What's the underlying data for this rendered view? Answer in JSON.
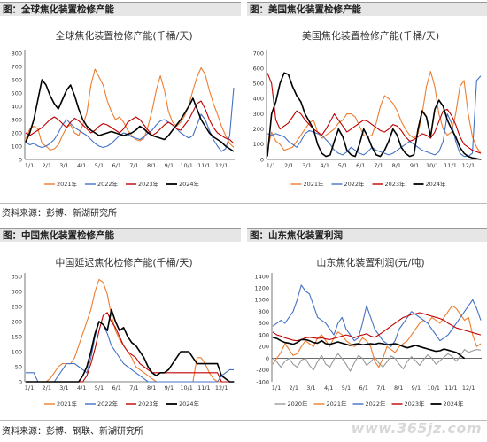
{
  "captions": {
    "tl": "图：全球焦化装置检修产能",
    "tr": "图：美国焦化装置检修产能",
    "bl": "图：中国焦化装置检修产能",
    "br": "图：山东焦化装置利润"
  },
  "sources": {
    "top": "资料来源：彭博、新湖研究所",
    "bottom": "资料来源：彭博、钢联、新湖研究所"
  },
  "watermark": "www.365jz.com",
  "chart_data": [
    {
      "id": "global",
      "type": "line",
      "title": "全球焦化装置检修产能(千桶/天)",
      "ylim": [
        0,
        800
      ],
      "yticks": [
        0,
        100,
        200,
        300,
        400,
        500,
        600,
        700,
        800
      ],
      "x_labels": [
        "1/1",
        "2/1",
        "3/1",
        "4/1",
        "5/1",
        "6/1",
        "7/1",
        "8/1",
        "9/1",
        "10/1",
        "11/1",
        "12/1"
      ],
      "series": [
        {
          "name": "2021年",
          "color": "#ED7D31",
          "values": [
            150,
            230,
            250,
            230,
            120,
            100,
            70,
            80,
            110,
            180,
            240,
            260,
            200,
            180,
            260,
            350,
            560,
            680,
            620,
            560,
            440,
            360,
            300,
            320,
            280,
            220,
            180,
            150,
            140,
            160,
            250,
            370,
            520,
            630,
            520,
            360,
            280,
            250,
            280,
            330,
            410,
            520,
            620,
            690,
            640,
            520,
            420,
            340,
            250,
            180,
            120,
            90
          ]
        },
        {
          "name": "2022年",
          "color": "#4472C4",
          "values": [
            130,
            110,
            120,
            100,
            90,
            100,
            120,
            150,
            200,
            260,
            300,
            270,
            240,
            220,
            200,
            180,
            150,
            120,
            100,
            90,
            100,
            120,
            150,
            180,
            200,
            190,
            170,
            160,
            150,
            170,
            200,
            220,
            260,
            290,
            300,
            280,
            260,
            230,
            200,
            180,
            160,
            180,
            260,
            340,
            300,
            220,
            150,
            100,
            60,
            80,
            180,
            540
          ]
        },
        {
          "name": "2023年",
          "color": "#C00000",
          "values": [
            200,
            180,
            200,
            220,
            240,
            270,
            300,
            320,
            300,
            270,
            240,
            280,
            310,
            290,
            260,
            230,
            200,
            220,
            250,
            270,
            260,
            240,
            220,
            200,
            230,
            280,
            300,
            320,
            300,
            260,
            220,
            180,
            200,
            230,
            260,
            280,
            260,
            230,
            220,
            260,
            300,
            360,
            420,
            440,
            380,
            300,
            240,
            200,
            180,
            160,
            150,
            120
          ]
        },
        {
          "name": "2024年",
          "color": "#000000",
          "values": [
            130,
            200,
            300,
            450,
            600,
            560,
            480,
            420,
            380,
            450,
            520,
            560,
            480,
            380,
            300,
            250,
            220,
            200,
            180,
            190,
            200,
            210,
            200,
            190,
            180,
            190,
            200,
            220,
            250,
            230,
            200,
            180,
            170,
            160,
            150,
            180,
            220,
            260,
            300,
            350,
            400,
            460,
            380,
            300,
            250,
            200,
            170,
            150,
            130,
            100,
            80,
            60
          ]
        }
      ]
    },
    {
      "id": "us",
      "type": "line",
      "title": "美国焦化装置检修产能(千桶/天)",
      "ylim": [
        0,
        700
      ],
      "yticks": [
        0,
        100,
        200,
        300,
        400,
        500,
        600,
        700
      ],
      "x_labels": [
        "1/1",
        "2/1",
        "3/1",
        "4/1",
        "5/1",
        "6/1",
        "7/1",
        "8/1",
        "9/1",
        "10/1",
        "11/1",
        "12/1"
      ],
      "series": [
        {
          "name": "2021年",
          "color": "#ED7D31",
          "values": [
            60,
            180,
            120,
            100,
            60,
            70,
            80,
            120,
            160,
            200,
            240,
            260,
            180,
            140,
            160,
            180,
            200,
            240,
            260,
            300,
            300,
            280,
            220,
            160,
            150,
            160,
            240,
            350,
            420,
            400,
            370,
            320,
            250,
            200,
            160,
            140,
            170,
            300,
            480,
            580,
            480,
            300,
            200,
            160,
            180,
            300,
            480,
            520,
            300,
            150,
            80,
            40
          ]
        },
        {
          "name": "2022年",
          "color": "#4472C4",
          "values": [
            170,
            160,
            170,
            160,
            150,
            120,
            100,
            80,
            120,
            170,
            190,
            180,
            170,
            160,
            130,
            100,
            60,
            40,
            30,
            50,
            80,
            60,
            40,
            30,
            50,
            80,
            60,
            50,
            40,
            30,
            40,
            60,
            80,
            100,
            120,
            100,
            80,
            60,
            50,
            40,
            30,
            50,
            120,
            300,
            240,
            120,
            40,
            20,
            20,
            40,
            520,
            550
          ]
        },
        {
          "name": "2023年",
          "color": "#C00000",
          "values": [
            570,
            500,
            260,
            200,
            220,
            240,
            280,
            320,
            300,
            260,
            230,
            200,
            180,
            160,
            200,
            250,
            300,
            260,
            220,
            180,
            200,
            220,
            240,
            260,
            250,
            230,
            210,
            190,
            180,
            200,
            230,
            220,
            190,
            150,
            120,
            130,
            150,
            170,
            160,
            140,
            180,
            250,
            320,
            330,
            290,
            230,
            150,
            100,
            80,
            60,
            50,
            40
          ]
        },
        {
          "name": "2024年",
          "color": "#000000",
          "values": [
            20,
            300,
            380,
            500,
            570,
            560,
            480,
            420,
            380,
            300,
            250,
            200,
            100,
            40,
            20,
            30,
            120,
            200,
            150,
            60,
            30,
            20,
            100,
            200,
            150,
            80,
            30,
            20,
            60,
            120,
            200,
            160,
            80,
            40,
            20,
            30,
            200,
            320,
            280,
            150,
            330,
            390,
            350,
            260,
            200,
            150,
            80,
            40,
            20,
            10,
            5,
            0
          ]
        }
      ]
    },
    {
      "id": "china",
      "type": "line",
      "title": "中国延迟焦化检修产能(千桶/天)",
      "ylim": [
        0,
        350
      ],
      "yticks": [
        0,
        50,
        100,
        150,
        200,
        250,
        300,
        350
      ],
      "x_labels": [
        "1/1",
        "2/1",
        "3/1",
        "4/1",
        "5/1",
        "6/1",
        "7/1",
        "8/1",
        "9/1",
        "10/1",
        "11/1",
        "12/1"
      ],
      "series": [
        {
          "name": "2021年",
          "color": "#ED7D31",
          "values": [
            0,
            0,
            0,
            0,
            0,
            0,
            10,
            30,
            50,
            60,
            60,
            60,
            80,
            120,
            160,
            200,
            240,
            300,
            340,
            330,
            290,
            220,
            170,
            140,
            120,
            100,
            80,
            50,
            40,
            30,
            20,
            10,
            0,
            0,
            0,
            0,
            0,
            0,
            0,
            0,
            0,
            0,
            80,
            80,
            60,
            30,
            10,
            0,
            0,
            0,
            0,
            0
          ]
        },
        {
          "name": "2022年",
          "color": "#4472C4",
          "values": [
            30,
            30,
            30,
            0,
            0,
            0,
            0,
            0,
            20,
            40,
            60,
            60,
            60,
            50,
            40,
            30,
            80,
            150,
            200,
            190,
            160,
            120,
            100,
            80,
            60,
            50,
            40,
            30,
            20,
            10,
            0,
            0,
            0,
            0,
            0,
            0,
            0,
            0,
            0,
            0,
            0,
            0,
            0,
            0,
            0,
            0,
            0,
            0,
            20,
            30,
            40,
            40
          ]
        },
        {
          "name": "2023年",
          "color": "#C00000",
          "values": [
            0,
            0,
            0,
            0,
            0,
            0,
            0,
            0,
            0,
            0,
            0,
            0,
            0,
            0,
            0,
            20,
            60,
            110,
            170,
            220,
            230,
            200,
            180,
            150,
            120,
            100,
            90,
            80,
            60,
            50,
            40,
            30,
            30,
            30,
            30,
            30,
            30,
            30,
            30,
            30,
            30,
            30,
            30,
            30,
            30,
            30,
            30,
            30,
            0,
            0,
            0,
            0
          ]
        },
        {
          "name": "2024年",
          "color": "#000000",
          "values": [
            0,
            0,
            0,
            0,
            0,
            0,
            0,
            0,
            0,
            0,
            0,
            0,
            0,
            0,
            20,
            50,
            100,
            160,
            200,
            190,
            170,
            240,
            200,
            170,
            180,
            150,
            130,
            120,
            100,
            80,
            50,
            30,
            20,
            30,
            30,
            40,
            60,
            80,
            100,
            100,
            100,
            80,
            60,
            60,
            60,
            60,
            60,
            60,
            20,
            10,
            0,
            0
          ]
        }
      ]
    },
    {
      "id": "shandong",
      "type": "line",
      "title": "山东焦化装置利润(元/吨)",
      "ylim": [
        -400,
        1400
      ],
      "yticks": [
        -400,
        -200,
        0,
        200,
        400,
        600,
        800,
        1000,
        1200,
        1400
      ],
      "x_labels": [
        "1/1",
        "2/1",
        "3/1",
        "4/1",
        "5/1",
        "6/1",
        "7/1",
        "8/1",
        "9/1",
        "10/1",
        "11/1",
        "12/1"
      ],
      "series": [
        {
          "name": "2020年",
          "color": "#999999",
          "values": [
            0,
            -60,
            -150,
            -50,
            0,
            -100,
            -150,
            -30,
            0,
            -120,
            -200,
            -50,
            50,
            -100,
            -150,
            -20,
            80,
            0,
            -100,
            -220,
            -80,
            50,
            0,
            -120,
            -60,
            20,
            -80,
            -150,
            -60,
            40,
            0,
            -100,
            -180,
            -50,
            30,
            -40,
            -120,
            -20,
            60,
            0,
            -100,
            -40,
            20,
            80,
            30,
            -50,
            50,
            150,
            100,
            130,
            150,
            140
          ]
        },
        {
          "name": "2021年",
          "color": "#ED7D31",
          "values": [
            -100,
            0,
            100,
            250,
            150,
            50,
            80,
            200,
            300,
            250,
            200,
            350,
            400,
            300,
            200,
            350,
            450,
            400,
            300,
            250,
            200,
            250,
            350,
            300,
            200,
            -50,
            -150,
            0,
            200,
            150,
            100,
            200,
            250,
            300,
            400,
            500,
            600,
            650,
            600,
            700,
            650,
            600,
            700,
            800,
            900,
            850,
            750,
            650,
            700,
            400,
            200,
            250
          ]
        },
        {
          "name": "2022年",
          "color": "#4472C4",
          "values": [
            550,
            600,
            650,
            600,
            700,
            800,
            1000,
            1250,
            1150,
            1100,
            900,
            700,
            650,
            600,
            500,
            400,
            600,
            700,
            500,
            400,
            300,
            350,
            600,
            900,
            700,
            500,
            400,
            300,
            250,
            200,
            300,
            500,
            600,
            700,
            800,
            750,
            700,
            650,
            600,
            500,
            400,
            300,
            350,
            400,
            500,
            600,
            700,
            800,
            900,
            1000,
            850,
            650
          ]
        },
        {
          "name": "2023年",
          "color": "#C00000",
          "values": [
            450,
            400,
            380,
            350,
            330,
            310,
            300,
            320,
            350,
            360,
            350,
            340,
            350,
            330,
            320,
            340,
            360,
            380,
            400,
            380,
            350,
            380,
            400,
            420,
            380,
            360,
            400,
            450,
            500,
            550,
            600,
            650,
            700,
            720,
            750,
            760,
            780,
            760,
            740,
            720,
            700,
            680,
            650,
            600,
            560,
            520,
            500,
            480,
            460,
            440,
            420,
            400
          ]
        },
        {
          "name": "2024年",
          "color": "#000000",
          "values": [
            360,
            340,
            300,
            270,
            260,
            240,
            270,
            320,
            320,
            300,
            270,
            260,
            300,
            250,
            240,
            260,
            280,
            260,
            240,
            220,
            240,
            250,
            230,
            240,
            250,
            240,
            260,
            250,
            230,
            240,
            250,
            230,
            200,
            180,
            200,
            220,
            200,
            180,
            160,
            140,
            120,
            130,
            160,
            140,
            120,
            100,
            50,
            0
          ]
        }
      ]
    }
  ]
}
